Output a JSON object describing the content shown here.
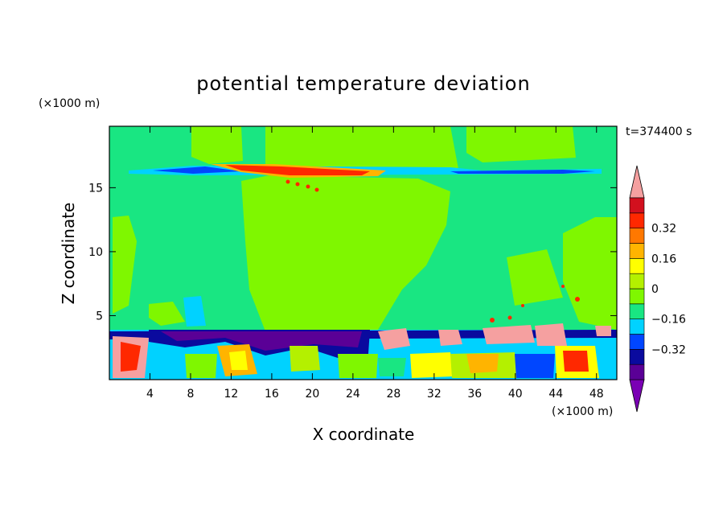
{
  "chart_data": {
    "type": "heatmap",
    "title": "potential temperature deviation",
    "xlabel": "X coordinate",
    "ylabel": "Z coordinate",
    "x_unit": "(×1000 m)",
    "y_unit": "(×1000 m)",
    "time_label": "t=374400 s",
    "xlim": [
      0,
      50
    ],
    "ylim": [
      0,
      19.8
    ],
    "x_ticks": [
      4,
      8,
      12,
      16,
      20,
      24,
      28,
      32,
      36,
      40,
      44,
      48
    ],
    "y_ticks": [
      5,
      10,
      15
    ],
    "colorbar": {
      "levels": [
        -0.48,
        -0.4,
        -0.32,
        -0.24,
        -0.16,
        -0.08,
        0,
        0.08,
        0.16,
        0.24,
        0.32,
        0.4,
        0.48
      ],
      "labels": [
        "0.32",
        "0.16",
        "0",
        "−0.16",
        "−0.32"
      ],
      "label_values": [
        0.32,
        0.16,
        0,
        -0.16,
        -0.32
      ],
      "colors": {
        "min_arrow": "#7a00b4",
        "bands": [
          "#5a0096",
          "#0a0a9e",
          "#0046ff",
          "#00d2ff",
          "#19e682",
          "#7ff700",
          "#b4f000",
          "#ffff00",
          "#ffb400",
          "#ff7800",
          "#ff2800",
          "#d2101e"
        ],
        "max_arrow": "#f5a0a0"
      }
    }
  }
}
